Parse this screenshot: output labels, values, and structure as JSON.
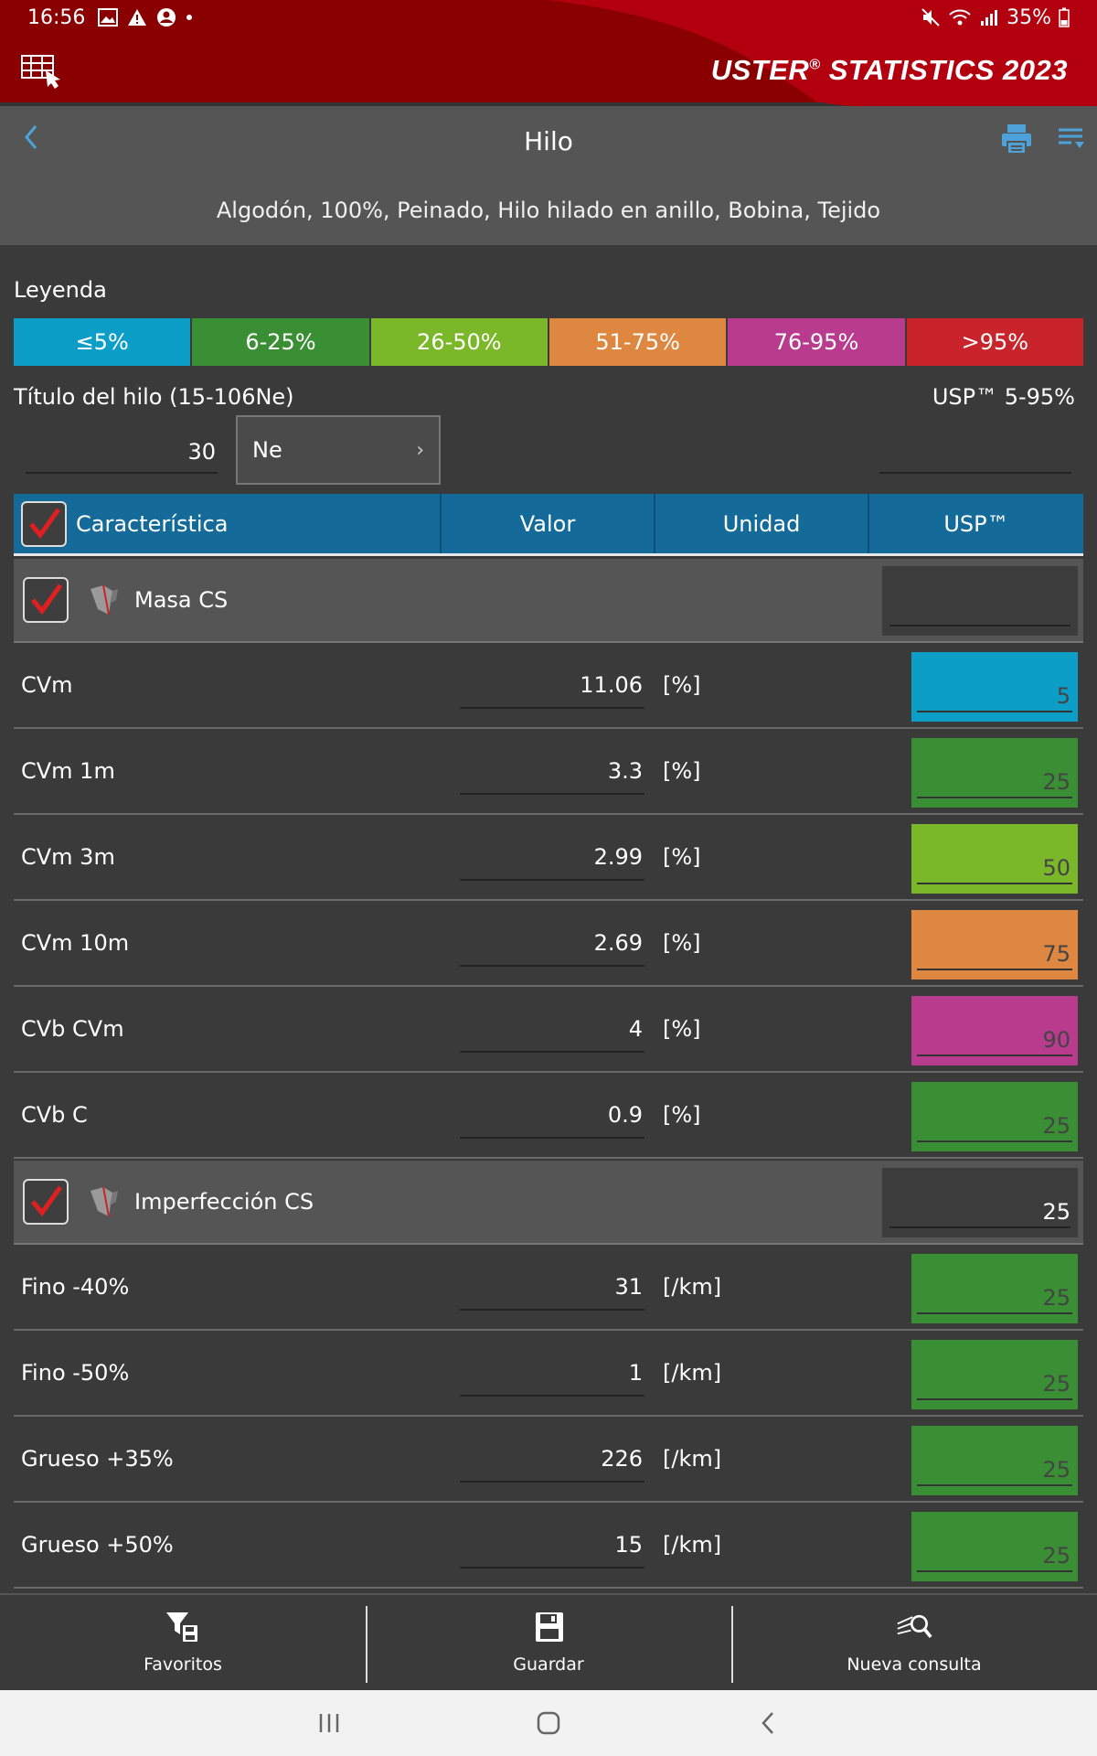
{
  "status_bar": {
    "time": "16:56",
    "battery": "35%"
  },
  "app": {
    "brand": "USTER",
    "brand_mark": "®",
    "brand_rest": "STATISTICS 2023"
  },
  "title_bar": {
    "title": "Hilo",
    "subtitle": "Algodón, 100%, Peinado, Hilo hilado en anillo, Bobina, Tejido"
  },
  "legend": {
    "title": "Leyenda",
    "items": [
      {
        "label": "≤5%",
        "color": "#0d9ec8"
      },
      {
        "label": "6-25%",
        "color": "#3a8f35"
      },
      {
        "label": "26-50%",
        "color": "#7ab829"
      },
      {
        "label": "51-75%",
        "color": "#de8740"
      },
      {
        "label": "76-95%",
        "color": "#b83b8e"
      },
      {
        "label": ">95%",
        "color": "#c9232b"
      }
    ]
  },
  "yarn_count": {
    "label": "Título del hilo (15-106Ne)",
    "value": "30",
    "unit": "Ne",
    "usp_range": "USP™ 5-95%"
  },
  "table": {
    "headers": {
      "characteristic": "Característica",
      "value": "Valor",
      "unit": "Unidad",
      "usp": "USP™"
    },
    "sections": [
      {
        "label": "Masa CS",
        "usp": "",
        "rows": [
          {
            "label": "CVm",
            "value": "11.06",
            "unit": "[%]",
            "usp": "5",
            "color": "#0d9ec8"
          },
          {
            "label": "CVm 1m",
            "value": "3.3",
            "unit": "[%]",
            "usp": "25",
            "color": "#3a8f35"
          },
          {
            "label": "CVm 3m",
            "value": "2.99",
            "unit": "[%]",
            "usp": "50",
            "color": "#7ab829"
          },
          {
            "label": "CVm 10m",
            "value": "2.69",
            "unit": "[%]",
            "usp": "75",
            "color": "#de8740"
          },
          {
            "label": "CVb CVm",
            "value": "4",
            "unit": "[%]",
            "usp": "90",
            "color": "#b83b8e"
          },
          {
            "label": "CVb C",
            "value": "0.9",
            "unit": "[%]",
            "usp": "25",
            "color": "#3a8f35"
          }
        ]
      },
      {
        "label": "Imperfección CS",
        "usp": "25",
        "rows": [
          {
            "label": "Fino -40%",
            "value": "31",
            "unit": "[/km]",
            "usp": "25",
            "color": "#3a8f35"
          },
          {
            "label": "Fino -50%",
            "value": "1",
            "unit": "[/km]",
            "usp": "25",
            "color": "#3a8f35"
          },
          {
            "label": "Grueso +35%",
            "value": "226",
            "unit": "[/km]",
            "usp": "25",
            "color": "#3a8f35"
          },
          {
            "label": "Grueso +50%",
            "value": "15",
            "unit": "[/km]",
            "usp": "25",
            "color": "#3a8f35"
          }
        ]
      }
    ]
  },
  "toolbar": {
    "favorites": "Favoritos",
    "save": "Guardar",
    "new_query": "Nueva consulta"
  }
}
